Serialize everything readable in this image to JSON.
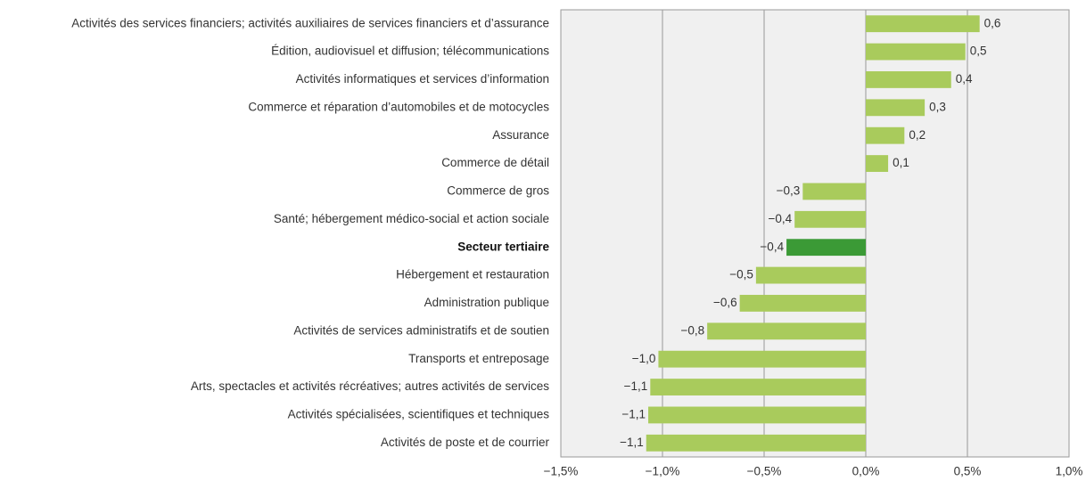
{
  "chart_data": {
    "type": "bar",
    "orientation": "horizontal",
    "categories": [
      "Activités des services financiers; activités auxiliaires de services financiers et d’assurance",
      "Édition, audiovisuel et diffusion; télécommunications",
      "Activités informatiques et services d’information",
      "Commerce et réparation d’automobiles et de motocycles",
      "Assurance",
      "Commerce de détail",
      "Commerce de gros",
      "Santé; hébergement médico-social et action sociale",
      "Secteur tertiaire",
      "Hébergement et restauration",
      "Administration publique",
      "Activités de services administratifs et de soutien",
      "Transports et entreposage",
      "Arts, spectacles et activités récréatives; autres activités de services",
      "Activités spécialisées, scientifiques et techniques",
      "Activités de poste et de courrier"
    ],
    "values": [
      0.56,
      0.49,
      0.42,
      0.29,
      0.19,
      0.11,
      -0.31,
      -0.35,
      -0.39,
      -0.54,
      -0.62,
      -0.78,
      -1.02,
      -1.06,
      -1.07,
      -1.08
    ],
    "value_labels": [
      "0,6",
      "0,5",
      "0,4",
      "0,3",
      "0,2",
      "0,1",
      "−0,3",
      "−0,4",
      "−0,4",
      "−0,5",
      "−0,6",
      "−0,8",
      "−1,0",
      "−1,1",
      "−1,1",
      "−1,1"
    ],
    "colors": [
      "#a9cb5c",
      "#a9cb5c",
      "#a9cb5c",
      "#a9cb5c",
      "#a9cb5c",
      "#a9cb5c",
      "#a9cb5c",
      "#a9cb5c",
      "#3b9a36",
      "#a9cb5c",
      "#a9cb5c",
      "#a9cb5c",
      "#a9cb5c",
      "#a9cb5c",
      "#a9cb5c",
      "#a9cb5c"
    ],
    "bold_categories": [
      false,
      false,
      false,
      false,
      false,
      false,
      false,
      false,
      true,
      false,
      false,
      false,
      false,
      false,
      false,
      false
    ],
    "xlim": [
      -1.5,
      1.0
    ],
    "xticks": [
      {
        "value": -1.5,
        "label": "−1,5%"
      },
      {
        "value": -1.0,
        "label": "−1,0%"
      },
      {
        "value": -0.5,
        "label": "−0,5%"
      },
      {
        "value": 0,
        "label": "0,0%"
      },
      {
        "value": 0.5,
        "label": "0,5%"
      },
      {
        "value": 1.0,
        "label": "1,0%"
      }
    ],
    "grid": true
  }
}
